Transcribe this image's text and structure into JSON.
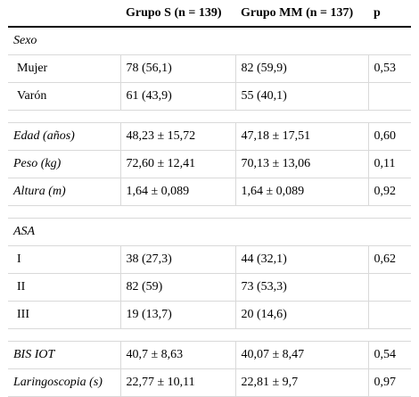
{
  "header": {
    "col1": "",
    "col2": "Grupo S (n = 139)",
    "col3": "Grupo MM (n = 137)",
    "col4": "p"
  },
  "sections": {
    "sexo": "Sexo",
    "asa": "ASA"
  },
  "rows": {
    "mujer": {
      "label": "Mujer",
      "s": "78 (56,1)",
      "mm": "82 (59,9)",
      "p": "0,53"
    },
    "varon": {
      "label": "Varón",
      "s": "61 (43,9)",
      "mm": "55 (40,1)",
      "p": ""
    },
    "edad": {
      "label": "Edad (años)",
      "s": "48,23 ± 15,72",
      "mm": "47,18 ± 17,51",
      "p": "0,60"
    },
    "peso": {
      "label": "Peso (kg)",
      "s": "72,60 ± 12,41",
      "mm": "70,13 ± 13,06",
      "p": "0,11"
    },
    "altura": {
      "label": "Altura (m)",
      "s": "1,64 ± 0,089",
      "mm": "1,64 ± 0,089",
      "p": "0,92"
    },
    "asa1": {
      "label": "I",
      "s": "38 (27,3)",
      "mm": "44 (32,1)",
      "p": "0,62"
    },
    "asa2": {
      "label": "II",
      "s": "82 (59)",
      "mm": "73 (53,3)",
      "p": ""
    },
    "asa3": {
      "label": "III",
      "s": "19 (13,7)",
      "mm": "20 (14,6)",
      "p": ""
    },
    "bis": {
      "label": "BIS IOT",
      "s": "40,7 ± 8,63",
      "mm": "40,07 ± 8,47",
      "p": "0,54"
    },
    "laringo": {
      "label": "Laringoscopia (s)",
      "s": "22,77 ± 10,11",
      "mm": "22,81 ± 9,7",
      "p": "0,97"
    }
  }
}
